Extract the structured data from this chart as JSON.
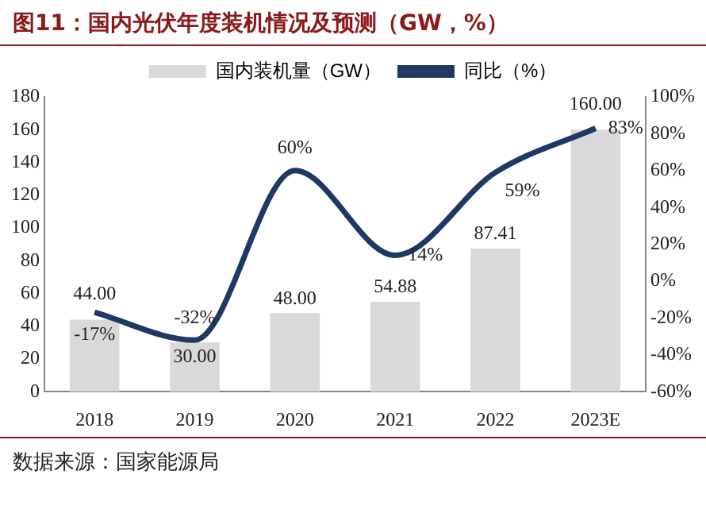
{
  "chart_data": {
    "type": "bar",
    "title": "图11：国内光伏年度装机情况及预测（GW，%）",
    "categories": [
      "2018",
      "2019",
      "2020",
      "2021",
      "2022",
      "2023E"
    ],
    "series": [
      {
        "name": "国内装机量（GW）",
        "color": "#d9d9d9",
        "values": [
          44.0,
          30.0,
          48.0,
          54.88,
          87.41,
          160.0
        ],
        "value_labels": [
          "44.00",
          "30.00",
          "48.00",
          "54.88",
          "87.41",
          "160.00"
        ]
      },
      {
        "name": "同比（%）",
        "type": "line",
        "axis": "y2",
        "color": "#1f3864",
        "values": [
          -17,
          -32,
          60,
          14,
          59,
          83
        ],
        "value_labels": [
          "-17%",
          "-32%",
          "60%",
          "14%",
          "59%",
          "83%"
        ]
      }
    ],
    "ylim": [
      0,
      180
    ],
    "yticks": [
      0,
      20,
      40,
      60,
      80,
      100,
      120,
      140,
      160,
      180
    ],
    "y2lim": [
      -60,
      100
    ],
    "y2ticks": [
      {
        "value": -60,
        "label": "-60%"
      },
      {
        "value": -40,
        "label": "-40%"
      },
      {
        "value": -20,
        "label": "-20%"
      },
      {
        "value": 0,
        "label": "0%"
      },
      {
        "value": 20,
        "label": "20%"
      },
      {
        "value": 40,
        "label": "40%"
      },
      {
        "value": 60,
        "label": "60%"
      },
      {
        "value": 80,
        "label": "80%"
      },
      {
        "value": 100,
        "label": "100%"
      }
    ],
    "legend": "top",
    "grid": false,
    "marker": "none",
    "annotations": [
      "数据来源：国家能源局"
    ]
  }
}
